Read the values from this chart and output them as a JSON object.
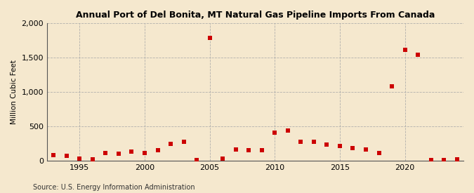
{
  "title": "Annual Port of Del Bonita, MT Natural Gas Pipeline Imports From Canada",
  "ylabel": "Million Cubic Feet",
  "source": "Source: U.S. Energy Information Administration",
  "background_color": "#f5e8ce",
  "plot_background_color": "#f5e8ce",
  "marker_color": "#cc0000",
  "marker": "s",
  "marker_size": 16,
  "ylim": [
    0,
    2000
  ],
  "yticks": [
    0,
    500,
    1000,
    1500,
    2000
  ],
  "xlim": [
    1992.5,
    2024.5
  ],
  "xticks": [
    1995,
    2000,
    2005,
    2010,
    2015,
    2020
  ],
  "years": [
    1993,
    1994,
    1995,
    1996,
    1997,
    1998,
    1999,
    2000,
    2001,
    2002,
    2003,
    2004,
    2005,
    2006,
    2007,
    2008,
    2009,
    2010,
    2011,
    2012,
    2013,
    2014,
    2015,
    2016,
    2017,
    2018,
    2019,
    2020,
    2021,
    2022,
    2023,
    2024
  ],
  "values": [
    75,
    65,
    30,
    15,
    105,
    95,
    130,
    105,
    155,
    245,
    275,
    5,
    1790,
    30,
    160,
    145,
    150,
    405,
    435,
    275,
    275,
    235,
    215,
    185,
    160,
    110,
    1080,
    1610,
    1545,
    10,
    10,
    15
  ]
}
